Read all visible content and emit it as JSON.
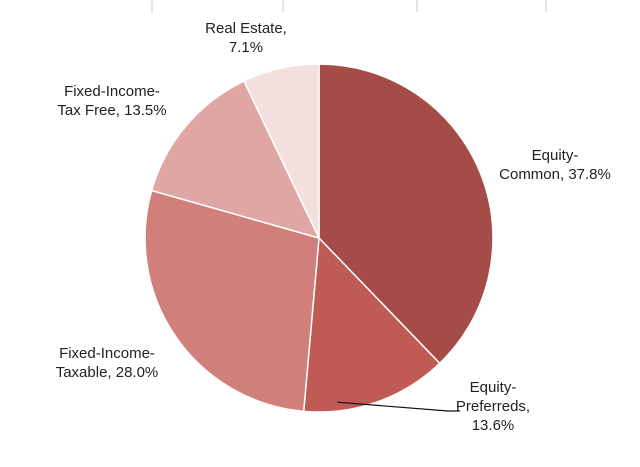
{
  "chart_data": {
    "type": "pie",
    "title": "",
    "start_angle_deg": 0,
    "direction": "clockwise",
    "slices": [
      {
        "name": "Equity-Common",
        "value": 37.8,
        "color": "#a54b48",
        "label_lines": [
          "Equity-",
          "Common, 37.8%"
        ]
      },
      {
        "name": "Equity-Preferreds",
        "value": 13.6,
        "color": "#bf5a55",
        "label_lines": [
          "Equity-",
          "Preferreds,",
          "13.6%"
        ]
      },
      {
        "name": "Fixed-Income-Taxable",
        "value": 28.0,
        "color": "#d07f7a",
        "label_lines": [
          "Fixed-Income-",
          "Taxable, 28.0%"
        ]
      },
      {
        "name": "Fixed-Income-Tax Free",
        "value": 13.5,
        "color": "#e0a6a3",
        "label_lines": [
          "Fixed-Income-",
          "Tax Free, 13.5%"
        ]
      },
      {
        "name": "Real Estate",
        "value": 7.1,
        "color": "#f3dfde",
        "label_lines": [
          "Real Estate,",
          "7.1%"
        ]
      }
    ],
    "legend": "none",
    "border_color": "#ffffff"
  }
}
